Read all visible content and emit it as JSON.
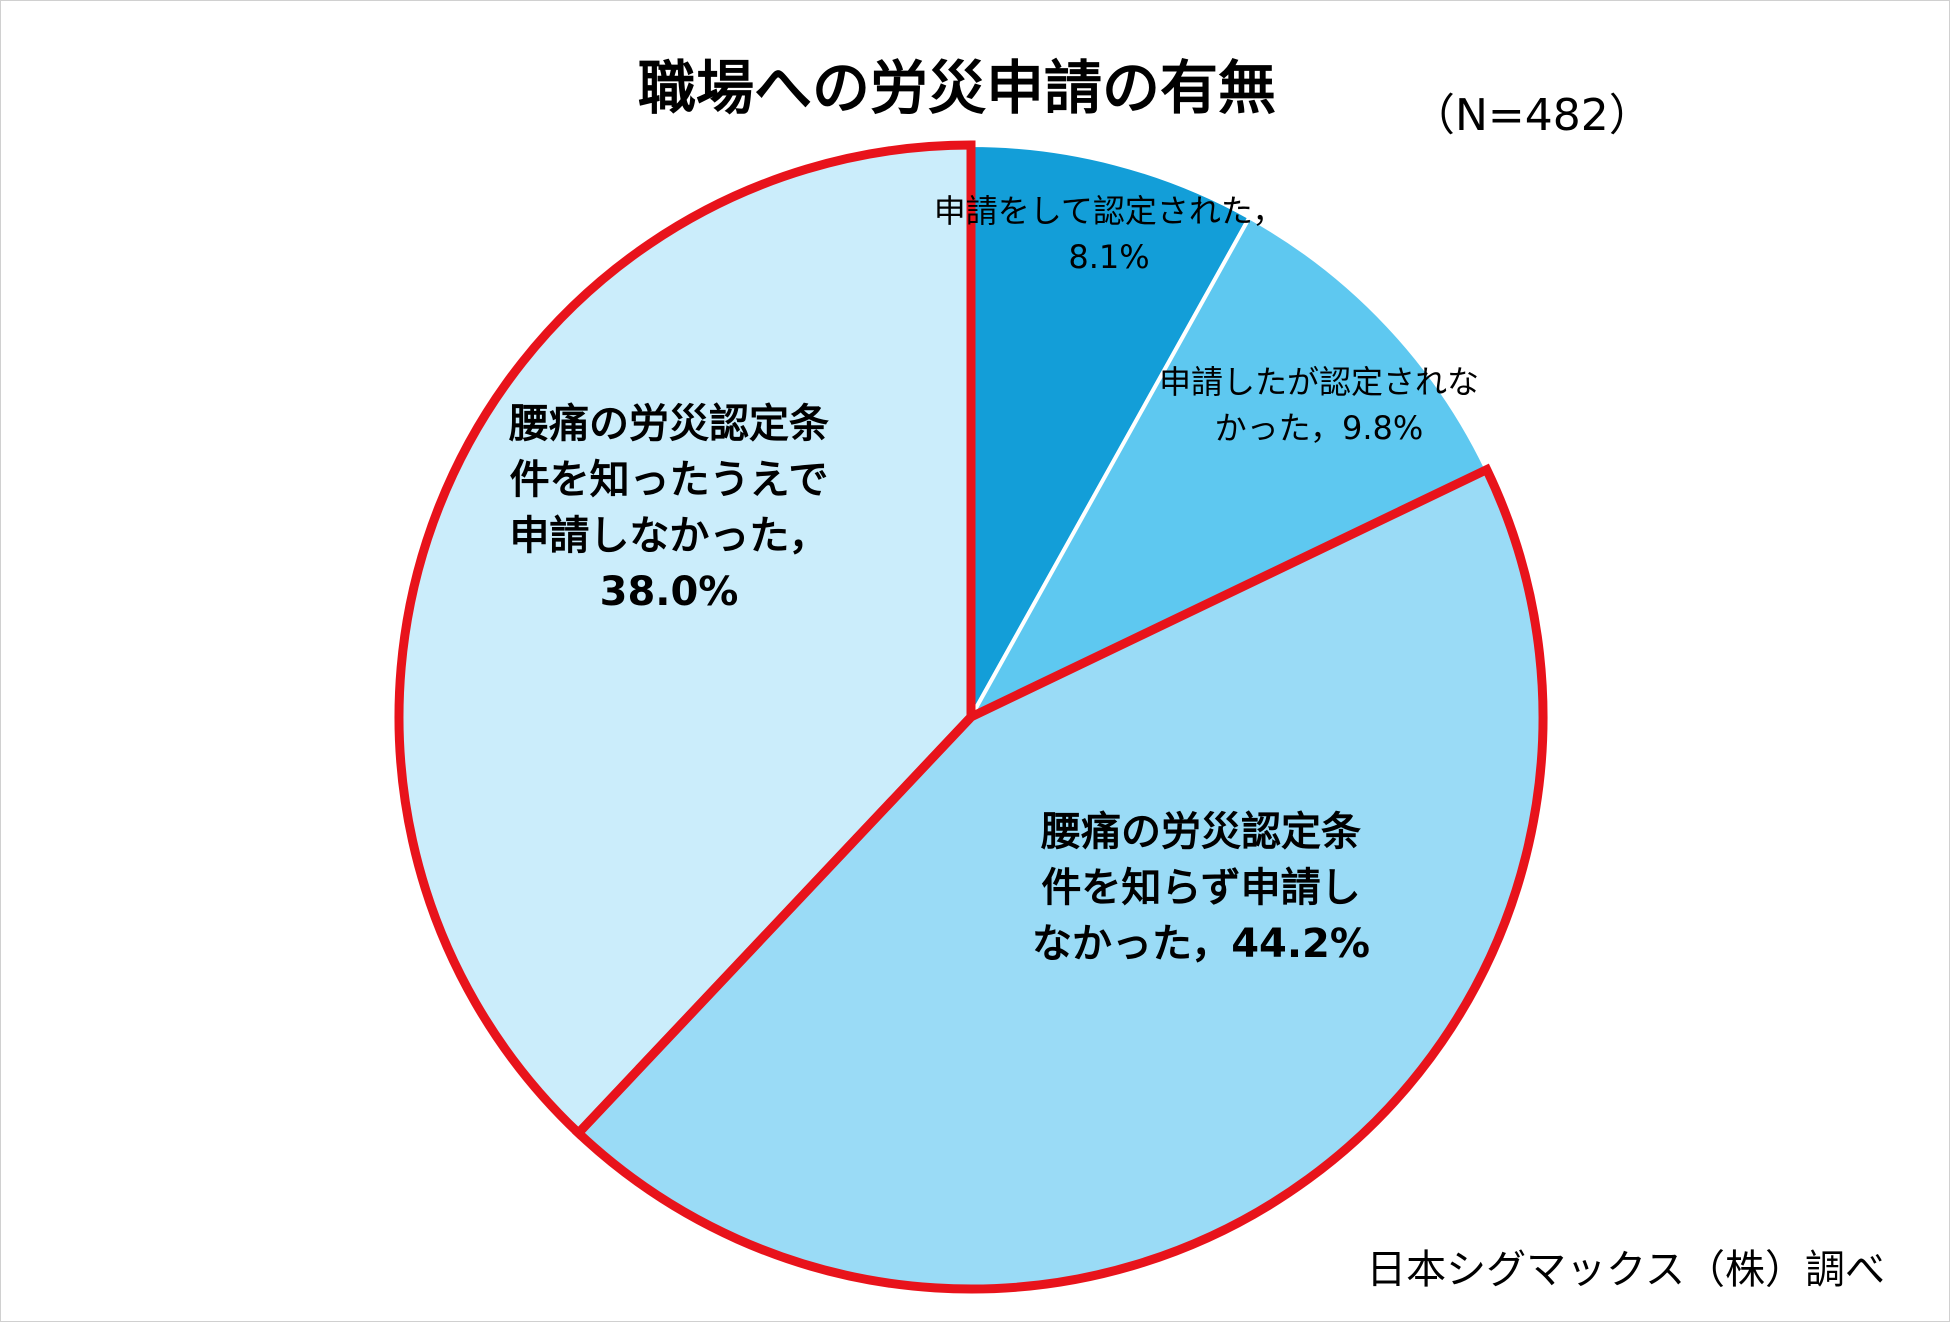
{
  "chart_data": {
    "type": "pie",
    "title": "職場への労災申請の有無",
    "subtitle": "（N=482）",
    "source": "日本シグマックス（株）調べ",
    "slices": [
      {
        "label_lines": [
          "申請をして認定された，",
          "8.1%"
        ],
        "value": 8.1,
        "color": "#139ed8",
        "highlight": false
      },
      {
        "label_lines": [
          "申請したが認定されな",
          "かった，9.8%"
        ],
        "value": 9.8,
        "color": "#5ec8f0",
        "highlight": false
      },
      {
        "label_lines": [
          "腰痛の労災認定条",
          "件を知らず申請し",
          "なかった，44.2%"
        ],
        "value": 44.2,
        "color": "#9adbf6",
        "highlight": true
      },
      {
        "label_lines": [
          "腰痛の労災認定条",
          "件を知ったうえで",
          "申請しなかった，",
          "38.0%"
        ],
        "value": 38.0,
        "color": "#cbedfb",
        "highlight": true
      }
    ],
    "highlight_color": "#e8131b",
    "divider_color": "#ffffff"
  }
}
